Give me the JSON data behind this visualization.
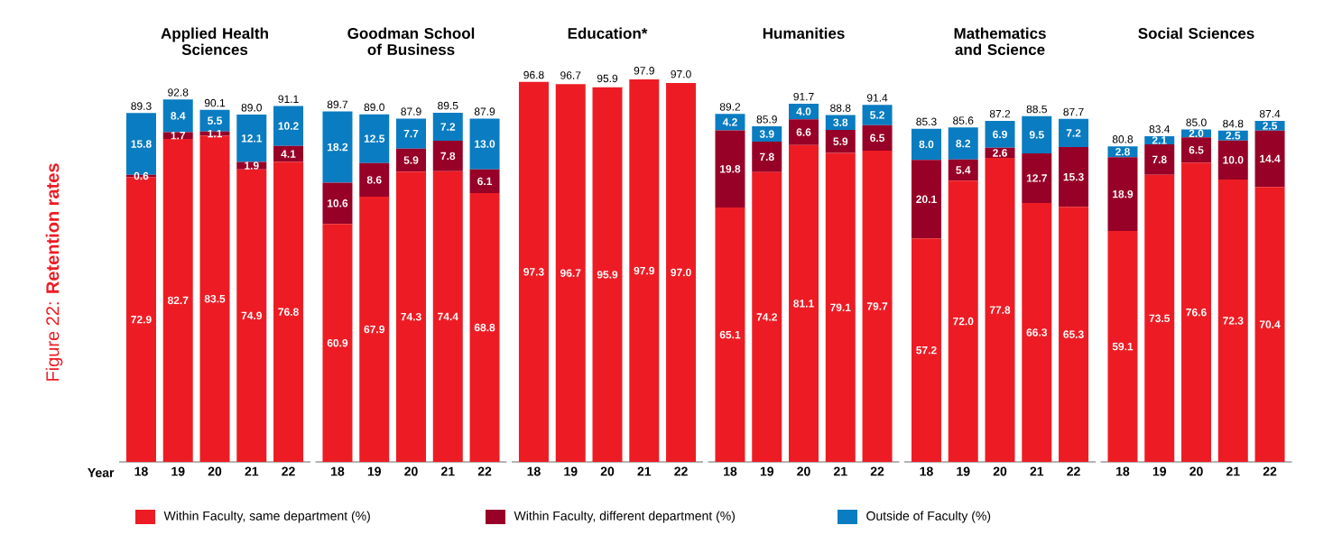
{
  "chart_data": [
    {
      "type": "bar",
      "stacked": true,
      "title": "Applied Health Sciences",
      "xlabel": "Year",
      "legend": "bottom",
      "annotations": [
        "Figure 22: **Retention rates**"
      ],
      "categories": [
        "18",
        "19",
        "20",
        "21",
        "22"
      ],
      "series": [
        {
          "name": "Within Faculty, same department (%)",
          "color": "#ed1c24",
          "values": [
            72.9,
            82.7,
            83.5,
            74.9,
            76.8
          ],
          "value_labels": [
            "72.9",
            "82.7",
            "83.5",
            "74.9",
            "76.8"
          ]
        },
        {
          "name": "Within Faculty, different department (%)",
          "color": "#970027",
          "values": [
            0.6,
            1.7,
            1.1,
            1.9,
            4.1
          ],
          "value_labels": [
            "0.6",
            "1.7",
            "1.1",
            "1.9",
            "4.1"
          ]
        },
        {
          "name": "Outside of Faculty (%)",
          "color": "#0a7cc1",
          "values": [
            15.8,
            8.4,
            5.5,
            12.1,
            10.2
          ],
          "value_labels": [
            "15.8",
            "8.4",
            "5.5",
            "12.1",
            "10.2"
          ]
        }
      ],
      "totals": [
        "89.3",
        "92.8",
        "90.1",
        "89.0",
        "91.1"
      ]
    },
    {
      "type": "bar",
      "stacked": true,
      "title": "Goodman School of Business",
      "categories": [
        "18",
        "19",
        "20",
        "21",
        "22"
      ],
      "series": [
        {
          "color": "#ed1c24",
          "values": [
            60.9,
            67.9,
            74.3,
            74.4,
            68.8
          ],
          "value_labels": [
            "60.9",
            "67.9",
            "74.3",
            "74.4",
            "68.8"
          ]
        },
        {
          "color": "#970027",
          "values": [
            10.6,
            8.6,
            5.9,
            7.8,
            6.1
          ],
          "value_labels": [
            "10.6",
            "8.6",
            "5.9",
            "7.8",
            "6.1"
          ]
        },
        {
          "color": "#0a7cc1",
          "values": [
            18.2,
            12.5,
            7.7,
            7.2,
            13.0
          ],
          "value_labels": [
            "18.2",
            "12.5",
            "7.7",
            "7.2",
            "13.0"
          ]
        }
      ],
      "totals": [
        "89.7",
        "89.0",
        "87.9",
        "89.5",
        "87.9"
      ]
    },
    {
      "type": "bar",
      "stacked": true,
      "title": "Education*",
      "categories": [
        "18",
        "19",
        "20",
        "21",
        "22"
      ],
      "series": [
        {
          "color": "#ed1c24",
          "values": [
            97.3,
            96.7,
            95.9,
            97.9,
            97.0
          ],
          "value_labels": [
            "97.3",
            "96.7",
            "95.9",
            "97.9",
            "97.0"
          ]
        }
      ],
      "annotations": [
        {
          "text": "96.8",
          "x": "18",
          "y": 96.8
        },
        {
          "text": "96.7",
          "x": "19",
          "y": 96.7
        },
        {
          "text": "95.9",
          "x": "20",
          "y": 95.9
        },
        {
          "text": "97.9",
          "x": "21",
          "y": 97.9
        },
        {
          "text": "97.0",
          "x": "22",
          "y": 97.0
        }
      ]
    },
    {
      "type": "bar",
      "stacked": true,
      "title": "Humanities",
      "categories": [
        "18",
        "19",
        "20",
        "21",
        "22"
      ],
      "series": [
        {
          "color": "#ed1c24",
          "values": [
            65.1,
            74.2,
            81.1,
            79.1,
            79.7
          ],
          "value_labels": [
            "65.1",
            "74.2",
            "81.1",
            "79.1",
            "79.7"
          ]
        },
        {
          "color": "#970027",
          "values": [
            19.8,
            7.8,
            6.6,
            5.9,
            6.5
          ],
          "value_labels": [
            "19.8",
            "7.8",
            "6.6",
            "5.9",
            "6.5"
          ]
        },
        {
          "color": "#0a7cc1",
          "values": [
            4.2,
            3.9,
            4.0,
            3.8,
            5.2
          ],
          "value_labels": [
            "4.2",
            "3.9",
            "4.0",
            "3.8",
            "5.2"
          ]
        }
      ],
      "totals": [
        "89.2",
        "85.9",
        "91.7",
        "88.8",
        "91.4"
      ]
    },
    {
      "type": "bar",
      "stacked": true,
      "title": "Mathematics and Science",
      "categories": [
        "18",
        "19",
        "20",
        "21",
        "22"
      ],
      "series": [
        {
          "color": "#ed1c24",
          "values": [
            57.2,
            72.0,
            77.8,
            66.3,
            65.3
          ],
          "value_labels": [
            "57.2",
            "72.0",
            "77.8",
            "66.3",
            "65.3"
          ]
        },
        {
          "color": "#970027",
          "values": [
            20.1,
            5.4,
            2.6,
            12.7,
            15.3
          ],
          "value_labels": [
            "20.1",
            "5.4",
            "2.6",
            "12.7",
            "15.3"
          ]
        },
        {
          "color": "#0a7cc1",
          "values": [
            8.0,
            8.2,
            6.9,
            9.5,
            7.2
          ],
          "value_labels": [
            "8.0",
            "8.2",
            "6.9",
            "9.5",
            "7.2"
          ]
        }
      ],
      "totals": [
        "85.3",
        "85.6",
        "87.2",
        "88.5",
        "87.7"
      ]
    },
    {
      "type": "bar",
      "stacked": true,
      "title": "Social Sciences",
      "categories": [
        "18",
        "19",
        "20",
        "21",
        "22"
      ],
      "series": [
        {
          "color": "#ed1c24",
          "values": [
            59.1,
            73.5,
            76.6,
            72.3,
            70.4
          ],
          "value_labels": [
            "59.1",
            "73.5",
            "76.6",
            "72.3",
            "70.4"
          ]
        },
        {
          "color": "#970027",
          "values": [
            18.9,
            7.8,
            6.5,
            10.0,
            14.4
          ],
          "value_labels": [
            "18.9",
            "7.8",
            "6.5",
            "10.0",
            "14.4"
          ]
        },
        {
          "color": "#0a7cc1",
          "values": [
            2.8,
            2.1,
            2.0,
            2.5,
            2.5
          ],
          "value_labels": [
            "2.8",
            "2.1",
            "2.0",
            "2.5",
            "2.5"
          ]
        }
      ],
      "totals": [
        "80.8",
        "83.4",
        "85.0",
        "84.8",
        "87.4"
      ]
    }
  ]
}
